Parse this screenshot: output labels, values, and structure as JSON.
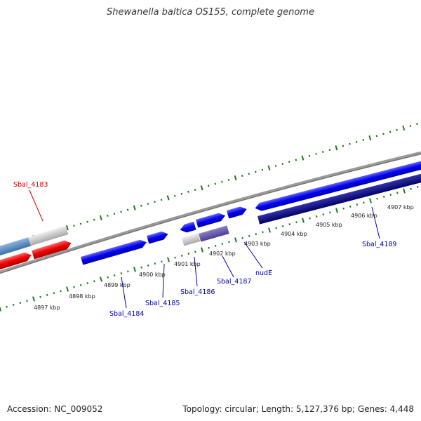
{
  "title": "Shewanella baltica OS155, complete genome",
  "footer": {
    "accession": "Accession: NC_009052",
    "summary": "Topology: circular; Length: 5,127,376 bp; Genes: 4,448"
  },
  "colors": {
    "forward_gene": "#0000ee",
    "forward_gene_dark": "#000080",
    "reverse_gene": "#ee0000",
    "pseudo_gene": "#c8c8c8",
    "rna_gene": "#4a7fb5",
    "backbone": "#808080",
    "ticks": "#1a7a1a",
    "label_red": "#d00000",
    "label_blue": "#0000b0"
  },
  "scale_labels": [
    "4897 kbp",
    "4898 kbp",
    "4899 kbp",
    "4900 kbp",
    "4901 kbp",
    "4902 kbp",
    "4903 kbp",
    "4904 kbp",
    "4905 kbp",
    "4906 kbp",
    "4907 kbp"
  ],
  "gene_labels": [
    "Sbal_4183",
    "Sbal_4184",
    "Sbal_4185",
    "Sbal_4186",
    "Sbal_4187",
    "nudE",
    "Sbal_4189"
  ]
}
